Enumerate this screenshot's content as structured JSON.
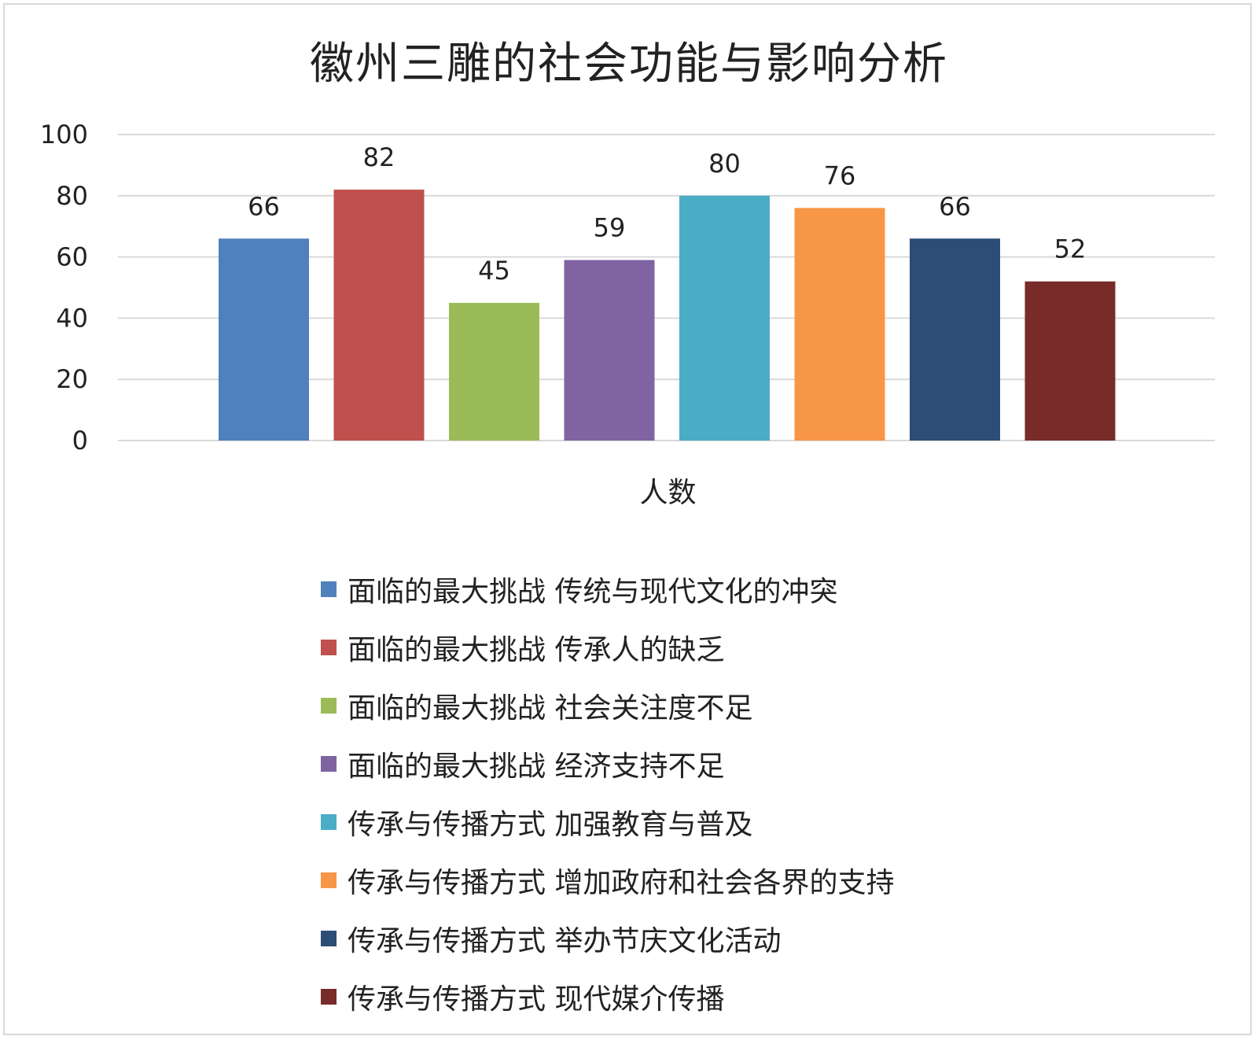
{
  "chart_data": {
    "type": "bar",
    "title": "徽州三雕的社会功能与影响分析",
    "xlabel": "人数",
    "ylabel": "",
    "ylim": [
      0,
      100
    ],
    "yticks": [
      0,
      20,
      40,
      60,
      80,
      100
    ],
    "grid": true,
    "legend_position": "bottom",
    "categories": [
      "人数"
    ],
    "series": [
      {
        "name": "面临的最大挑战 传统与现代文化的冲突",
        "value": 66,
        "color": "#4F81BD"
      },
      {
        "name": "面临的最大挑战 传承人的缺乏",
        "value": 82,
        "color": "#C0504D"
      },
      {
        "name": "面临的最大挑战 社会关注度不足",
        "value": 45,
        "color": "#9BBB59"
      },
      {
        "name": "面临的最大挑战 经济支持不足",
        "value": 59,
        "color": "#8064A2"
      },
      {
        "name": "传承与传播方式 加强教育与普及",
        "value": 80,
        "color": "#4BACC6"
      },
      {
        "name": "传承与传播方式 增加政府和社会各界的支持",
        "value": 76,
        "color": "#F79646"
      },
      {
        "name": "传承与传播方式 举办节庆文化活动",
        "value": 66,
        "color": "#2C4D75"
      },
      {
        "name": "传承与传播方式 现代媒介传播",
        "value": 52,
        "color": "#772C2A"
      }
    ]
  }
}
